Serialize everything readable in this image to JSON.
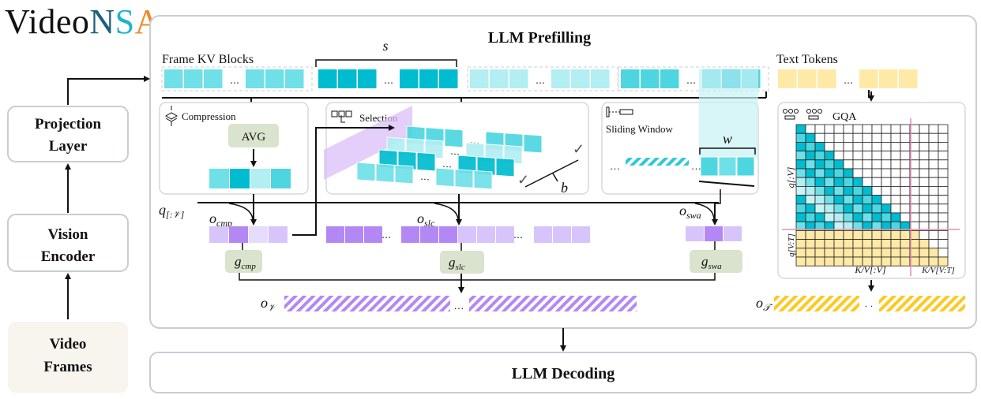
{
  "logo": {
    "part1": "Video",
    "n": "N",
    "s": "S",
    "a": "A",
    "colors": {
      "video": "#111111",
      "n": "#1f5f7a",
      "s": "#1cb5c9",
      "a": "#f08a24"
    }
  },
  "left": {
    "projection": [
      "Projection",
      "Layer"
    ],
    "vision": [
      "Vision",
      "Encoder"
    ],
    "frames": [
      "Video",
      "Frames"
    ]
  },
  "prefill": {
    "title": "LLM Prefilling",
    "frame_kv_label": "Frame KV Blocks",
    "block_size_label": "s",
    "text_tokens_label": "Text Tokens",
    "ellipsis": "…"
  },
  "compression": {
    "label": "Compression",
    "avg": "AVG"
  },
  "selection": {
    "label": "Selection",
    "block_count": "b"
  },
  "sliding": {
    "label": "Sliding Window",
    "window": "w"
  },
  "gqa": {
    "label": "GQA",
    "row_top": "q[:V]",
    "row_bottom": "q[V:T]",
    "col_left": "K/V[:V]",
    "col_right": "K/V[V:T]"
  },
  "outputs": {
    "q": {
      "base": "q",
      "sub": "[:𝒱]"
    },
    "o_cmp": {
      "base": "o",
      "sub": "cmp"
    },
    "o_slc": {
      "base": "o",
      "sub": "slc"
    },
    "o_swa": {
      "base": "o",
      "sub": "swa"
    },
    "g_cmp": {
      "base": "g",
      "sub": "cmp"
    },
    "g_slc": {
      "base": "g",
      "sub": "slc"
    },
    "g_swa": {
      "base": "g",
      "sub": "swa"
    },
    "o_v": {
      "base": "o",
      "sub": "𝒱"
    },
    "o_t": {
      "base": "o",
      "sub": "𝒯"
    },
    "dots": "…",
    "dots2": "· ·"
  },
  "decoding": {
    "title": "LLM Decoding"
  },
  "colors": {
    "teal_dark": "#00bcd0",
    "teal": "#4dd6e0",
    "teal_light": "#b2eef2",
    "purple": "#b388f5",
    "purple_light": "#d7c4fa",
    "yellow": "#ffe9a6",
    "gate": "#d9e3cd",
    "pink": "#e88bb8"
  }
}
